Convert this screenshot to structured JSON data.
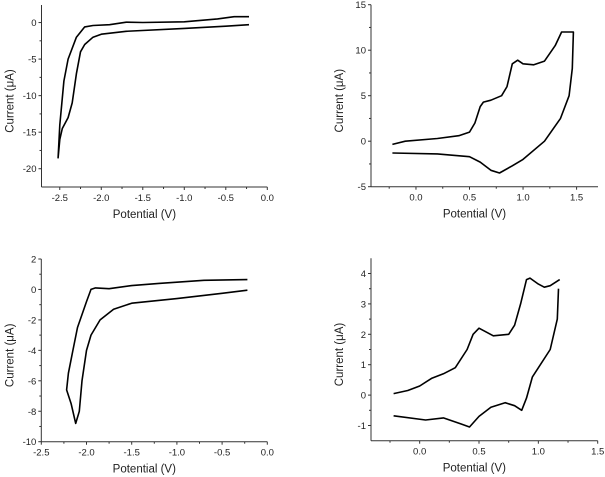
{
  "chart_data": [
    {
      "type": "line",
      "xlabel": "Potential (V)",
      "ylabel": "Current (μA)",
      "xlim": [
        -2.72,
        0.0
      ],
      "ylim": [
        -22.5,
        2.4
      ],
      "xticks": [
        -2.5,
        -2.0,
        -1.5,
        -1.0,
        -0.5,
        0.0
      ],
      "xtick_labels": [
        "-2.5",
        "-2.0",
        "-1.5",
        "-1.0",
        "-0.5",
        "0.0"
      ],
      "yticks": [
        0,
        -5,
        -10,
        -15,
        -20
      ],
      "ytick_labels": [
        "0",
        "-5",
        "-10",
        "-15",
        "-20"
      ],
      "grid": false,
      "color": "#000000",
      "series": [
        {
          "x": [
            -0.22,
            -0.4,
            -0.6,
            -1.0,
            -1.5,
            -1.7,
            -1.9,
            -2.1,
            -2.2,
            -2.3,
            -2.4,
            -2.45,
            -2.5,
            -2.52,
            -2.5,
            -2.47,
            -2.4,
            -2.35,
            -2.3,
            -2.25,
            -2.2,
            -2.1,
            -2.0,
            -1.7,
            -1.0,
            -0.5,
            -0.22
          ],
          "y": [
            0.8,
            0.8,
            0.5,
            0.1,
            0.0,
            0.05,
            -0.3,
            -0.4,
            -0.6,
            -2,
            -5,
            -8,
            -14,
            -18.5,
            -16,
            -14.5,
            -13,
            -11,
            -7,
            -4,
            -3,
            -2,
            -1.6,
            -1.2,
            -0.8,
            -0.5,
            -0.3
          ]
        }
      ]
    },
    {
      "type": "line",
      "xlabel": "Potential (V)",
      "ylabel": "Current (μA)",
      "xlim": [
        -0.42,
        1.7
      ],
      "ylim": [
        -5,
        15
      ],
      "xticks": [
        0.0,
        0.5,
        1.0,
        1.5
      ],
      "xtick_labels": [
        "0.0",
        "0.5",
        "1.0",
        "1.5"
      ],
      "yticks": [
        -5,
        0,
        5,
        10,
        15
      ],
      "ytick_labels": [
        "-5",
        "0",
        "5",
        "10",
        "15"
      ],
      "grid": false,
      "color": "#000000",
      "series": [
        {
          "x": [
            -0.22,
            -0.1,
            0.2,
            0.4,
            0.5,
            0.55,
            0.6,
            0.63,
            0.7,
            0.8,
            0.85,
            0.9,
            0.95,
            1.0,
            1.1,
            1.2,
            1.3,
            1.36,
            1.47,
            1.46,
            1.43,
            1.35,
            1.2,
            1.0,
            0.9,
            0.78,
            0.7,
            0.6,
            0.5,
            0.2,
            -0.22
          ],
          "y": [
            -0.35,
            0,
            0.3,
            0.6,
            1.0,
            2,
            3.8,
            4.3,
            4.5,
            5,
            6,
            8.5,
            8.9,
            8.5,
            8.4,
            8.8,
            10.5,
            12,
            12,
            8,
            5,
            2.5,
            0,
            -2,
            -2.7,
            -3.5,
            -3.2,
            -2.3,
            -1.7,
            -1.4,
            -1.3
          ]
        }
      ]
    },
    {
      "type": "line",
      "xlabel": "Potential (V)",
      "ylabel": "Current (μA)",
      "xlim": [
        -2.5,
        0.0
      ],
      "ylim": [
        -10,
        2
      ],
      "xticks": [
        -2.5,
        -2.0,
        -1.5,
        -1.0,
        -0.5,
        0.0
      ],
      "xtick_labels": [
        "-2.5",
        "-2.0",
        "-1.5",
        "-1.0",
        "-0.5",
        "0.0"
      ],
      "yticks": [
        2,
        0,
        -2,
        -4,
        -6,
        -8,
        -10
      ],
      "ytick_labels": [
        "2",
        "0",
        "-2",
        "-4",
        "-6",
        "-8",
        "-10"
      ],
      "grid": false,
      "color": "#000000",
      "series": [
        {
          "x": [
            -0.22,
            -0.7,
            -1.2,
            -1.5,
            -1.75,
            -1.9,
            -1.95,
            -2.0,
            -2.1,
            -2.15,
            -2.2,
            -2.22,
            -2.17,
            -2.12,
            -2.08,
            -2.05,
            -2.0,
            -1.95,
            -1.85,
            -1.7,
            -1.5,
            -1.0,
            -0.5,
            -0.22
          ],
          "y": [
            0.65,
            0.6,
            0.4,
            0.25,
            0.05,
            0.1,
            0.0,
            -0.8,
            -2.5,
            -4,
            -5.5,
            -6.6,
            -7.5,
            -8.8,
            -8,
            -6,
            -4,
            -3,
            -2,
            -1.3,
            -0.9,
            -0.6,
            -0.25,
            -0.05
          ]
        }
      ]
    },
    {
      "type": "line",
      "xlabel": "Potential (V)",
      "ylabel": "Current (μA)",
      "xlim": [
        -0.41,
        1.5
      ],
      "ylim": [
        -1.5,
        4.5
      ],
      "xticks": [
        0.0,
        0.5,
        1.0,
        1.5
      ],
      "xtick_labels": [
        "0.0",
        "0.5",
        "1.0",
        "1.5"
      ],
      "yticks": [
        -1,
        0,
        1,
        2,
        3,
        4
      ],
      "ytick_labels": [
        "-1",
        "0",
        "1",
        "2",
        "3",
        "4"
      ],
      "grid": false,
      "color": "#000000",
      "series": [
        {
          "x": [
            -0.22,
            -0.1,
            0.0,
            0.1,
            0.2,
            0.3,
            0.4,
            0.45,
            0.5,
            0.55,
            0.62,
            0.75,
            0.8,
            0.85,
            0.9,
            0.93,
            1.0,
            1.05,
            1.1,
            1.18
          ],
          "y": [
            0.05,
            0.15,
            0.3,
            0.55,
            0.7,
            0.9,
            1.5,
            2.0,
            2.2,
            2.1,
            1.95,
            2.0,
            2.3,
            3.0,
            3.8,
            3.85,
            3.65,
            3.55,
            3.6,
            3.8
          ]
        },
        {
          "x": [
            1.17,
            1.16,
            1.1,
            1.0,
            0.95,
            0.9,
            0.86,
            0.8,
            0.72,
            0.6,
            0.5,
            0.42,
            0.35,
            0.2,
            0.05,
            -0.22
          ],
          "y": [
            3.5,
            2.5,
            1.5,
            0.9,
            0.6,
            -0.1,
            -0.5,
            -0.35,
            -0.25,
            -0.4,
            -0.7,
            -1.05,
            -0.95,
            -0.75,
            -0.82,
            -0.68
          ]
        }
      ]
    }
  ]
}
